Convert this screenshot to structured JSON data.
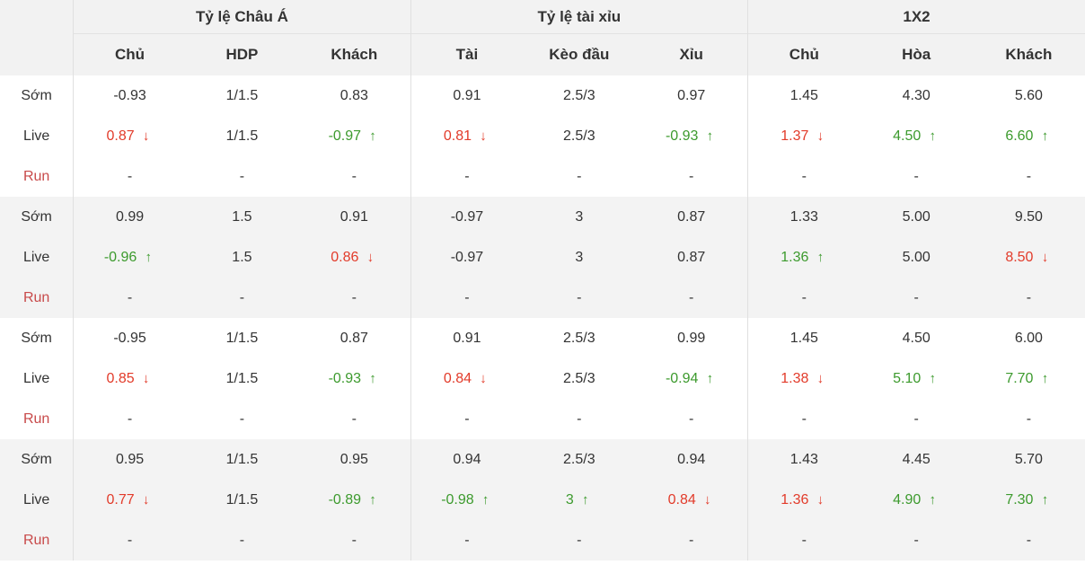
{
  "header": {
    "groups": [
      "Tỷ lệ Châu Á",
      "Tỷ lệ tài xỉu",
      "1X2"
    ],
    "subheaders": [
      "Chủ",
      "HDP",
      "Khách",
      "Tài",
      "Kèo đầu",
      "Xỉu",
      "Chủ",
      "Hòa",
      "Khách"
    ]
  },
  "colors": {
    "up": "#3c9a2d",
    "down": "#e23b2a",
    "run_label": "#c84a4a"
  },
  "matches": [
    {
      "rows": [
        {
          "label": "Sớm",
          "cells": [
            {
              "v": "-0.93"
            },
            {
              "v": "1/1.5"
            },
            {
              "v": "0.83"
            },
            {
              "v": "0.91"
            },
            {
              "v": "2.5/3"
            },
            {
              "v": "0.97"
            },
            {
              "v": "1.45"
            },
            {
              "v": "4.30"
            },
            {
              "v": "5.60"
            }
          ]
        },
        {
          "label": "Live",
          "cells": [
            {
              "v": "0.87",
              "t": "down"
            },
            {
              "v": "1/1.5"
            },
            {
              "v": "-0.97",
              "t": "up"
            },
            {
              "v": "0.81",
              "t": "down"
            },
            {
              "v": "2.5/3"
            },
            {
              "v": "-0.93",
              "t": "up"
            },
            {
              "v": "1.37",
              "t": "down"
            },
            {
              "v": "4.50",
              "t": "up"
            },
            {
              "v": "6.60",
              "t": "up"
            }
          ]
        },
        {
          "label": "Run",
          "cells": [
            {
              "v": "-"
            },
            {
              "v": "-"
            },
            {
              "v": "-"
            },
            {
              "v": "-"
            },
            {
              "v": "-"
            },
            {
              "v": "-"
            },
            {
              "v": "-"
            },
            {
              "v": "-"
            },
            {
              "v": "-"
            }
          ]
        }
      ]
    },
    {
      "rows": [
        {
          "label": "Sớm",
          "cells": [
            {
              "v": "0.99"
            },
            {
              "v": "1.5"
            },
            {
              "v": "0.91"
            },
            {
              "v": "-0.97"
            },
            {
              "v": "3"
            },
            {
              "v": "0.87"
            },
            {
              "v": "1.33"
            },
            {
              "v": "5.00"
            },
            {
              "v": "9.50"
            }
          ]
        },
        {
          "label": "Live",
          "cells": [
            {
              "v": "-0.96",
              "t": "up"
            },
            {
              "v": "1.5"
            },
            {
              "v": "0.86",
              "t": "down"
            },
            {
              "v": "-0.97"
            },
            {
              "v": "3"
            },
            {
              "v": "0.87"
            },
            {
              "v": "1.36",
              "t": "up"
            },
            {
              "v": "5.00"
            },
            {
              "v": "8.50",
              "t": "down"
            }
          ]
        },
        {
          "label": "Run",
          "cells": [
            {
              "v": "-"
            },
            {
              "v": "-"
            },
            {
              "v": "-"
            },
            {
              "v": "-"
            },
            {
              "v": "-"
            },
            {
              "v": "-"
            },
            {
              "v": "-"
            },
            {
              "v": "-"
            },
            {
              "v": "-"
            }
          ]
        }
      ]
    },
    {
      "rows": [
        {
          "label": "Sớm",
          "cells": [
            {
              "v": "-0.95"
            },
            {
              "v": "1/1.5"
            },
            {
              "v": "0.87"
            },
            {
              "v": "0.91"
            },
            {
              "v": "2.5/3"
            },
            {
              "v": "0.99"
            },
            {
              "v": "1.45"
            },
            {
              "v": "4.50"
            },
            {
              "v": "6.00"
            }
          ]
        },
        {
          "label": "Live",
          "cells": [
            {
              "v": "0.85",
              "t": "down"
            },
            {
              "v": "1/1.5"
            },
            {
              "v": "-0.93",
              "t": "up"
            },
            {
              "v": "0.84",
              "t": "down"
            },
            {
              "v": "2.5/3"
            },
            {
              "v": "-0.94",
              "t": "up"
            },
            {
              "v": "1.38",
              "t": "down"
            },
            {
              "v": "5.10",
              "t": "up"
            },
            {
              "v": "7.70",
              "t": "up"
            }
          ]
        },
        {
          "label": "Run",
          "cells": [
            {
              "v": "-"
            },
            {
              "v": "-"
            },
            {
              "v": "-"
            },
            {
              "v": "-"
            },
            {
              "v": "-"
            },
            {
              "v": "-"
            },
            {
              "v": "-"
            },
            {
              "v": "-"
            },
            {
              "v": "-"
            }
          ]
        }
      ]
    },
    {
      "rows": [
        {
          "label": "Sớm",
          "cells": [
            {
              "v": "0.95"
            },
            {
              "v": "1/1.5"
            },
            {
              "v": "0.95"
            },
            {
              "v": "0.94"
            },
            {
              "v": "2.5/3"
            },
            {
              "v": "0.94"
            },
            {
              "v": "1.43"
            },
            {
              "v": "4.45"
            },
            {
              "v": "5.70"
            }
          ]
        },
        {
          "label": "Live",
          "cells": [
            {
              "v": "0.77",
              "t": "down"
            },
            {
              "v": "1/1.5"
            },
            {
              "v": "-0.89",
              "t": "up"
            },
            {
              "v": "-0.98",
              "t": "up"
            },
            {
              "v": "3",
              "t": "up"
            },
            {
              "v": "0.84",
              "t": "down"
            },
            {
              "v": "1.36",
              "t": "down"
            },
            {
              "v": "4.90",
              "t": "up"
            },
            {
              "v": "7.30",
              "t": "up"
            }
          ]
        },
        {
          "label": "Run",
          "cells": [
            {
              "v": "-"
            },
            {
              "v": "-"
            },
            {
              "v": "-"
            },
            {
              "v": "-"
            },
            {
              "v": "-"
            },
            {
              "v": "-"
            },
            {
              "v": "-"
            },
            {
              "v": "-"
            },
            {
              "v": "-"
            }
          ]
        }
      ]
    }
  ]
}
